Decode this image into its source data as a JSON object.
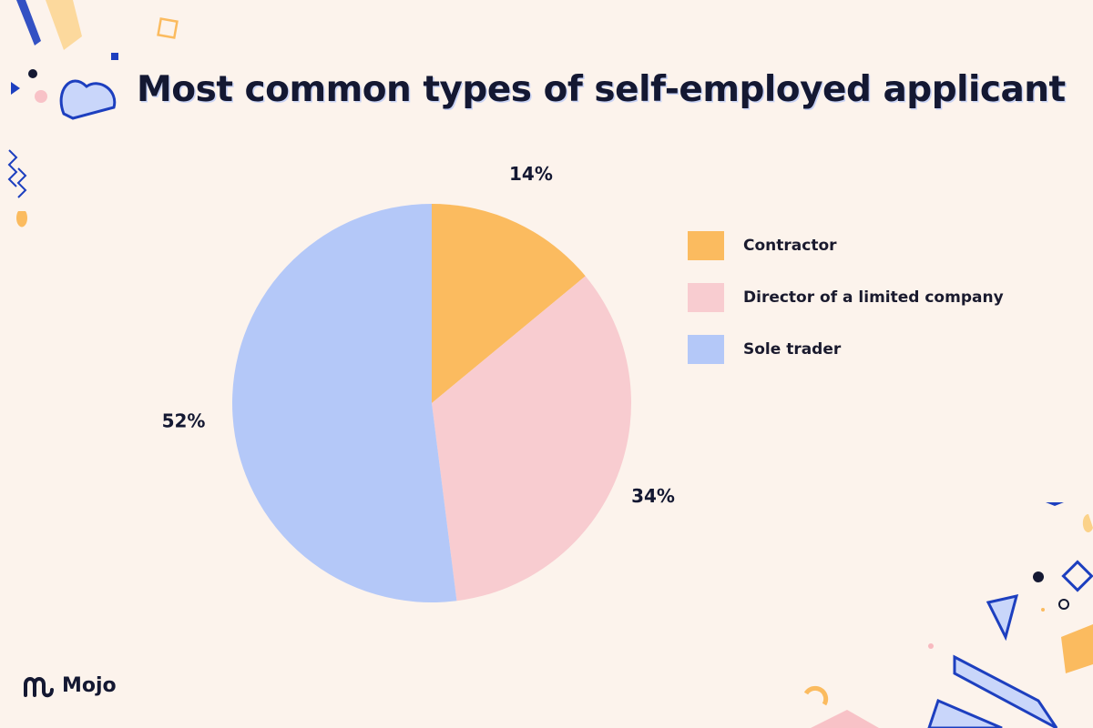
{
  "chart_data": {
    "type": "pie",
    "title": "Most common types of self-employed applicant",
    "slices": [
      {
        "label": "Contractor",
        "value": 14,
        "display": "14%",
        "color": "#fbbb5f"
      },
      {
        "label": "Director of a limited company",
        "value": 34,
        "display": "34%",
        "color": "#f8ccd0"
      },
      {
        "label": "Sole trader",
        "value": 52,
        "display": "52%",
        "color": "#b4c8f8"
      }
    ],
    "legend_position": "right"
  },
  "brand": {
    "name": "Mojo",
    "logo_icon": "mojo-logo-icon",
    "accent": "#1d3fbf"
  }
}
